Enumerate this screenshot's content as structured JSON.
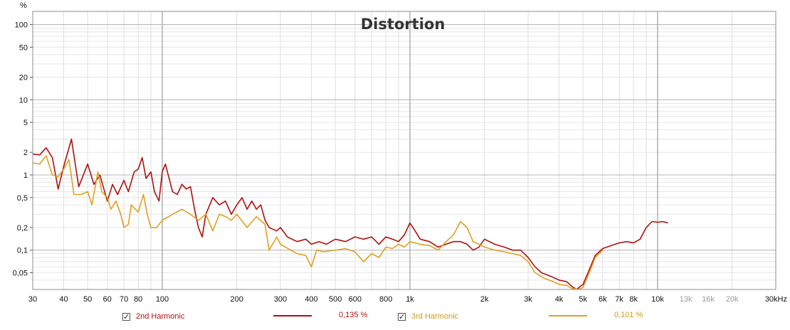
{
  "chart_data": {
    "type": "line",
    "title": "Distortion",
    "y_unit": "%",
    "x_scale": "log",
    "y_scale": "log",
    "xlim": [
      30,
      30000
    ],
    "ylim": [
      0.03,
      150
    ],
    "grid": true,
    "y_ticks": [
      {
        "v": 100,
        "label": "100"
      },
      {
        "v": 50,
        "label": "50"
      },
      {
        "v": 20,
        "label": "20"
      },
      {
        "v": 10,
        "label": "10"
      },
      {
        "v": 5,
        "label": "5"
      },
      {
        "v": 2,
        "label": "2"
      },
      {
        "v": 1,
        "label": "1"
      },
      {
        "v": 0.5,
        "label": "0,5"
      },
      {
        "v": 0.2,
        "label": "0,2"
      },
      {
        "v": 0.1,
        "label": "0,1"
      },
      {
        "v": 0.05,
        "label": "0,05"
      }
    ],
    "x_ticks": [
      {
        "v": 30,
        "label": "30"
      },
      {
        "v": 40,
        "label": "40"
      },
      {
        "v": 50,
        "label": "50"
      },
      {
        "v": 60,
        "label": "60"
      },
      {
        "v": 70,
        "label": "70"
      },
      {
        "v": 80,
        "label": "80"
      },
      {
        "v": 100,
        "label": "100"
      },
      {
        "v": 200,
        "label": "200"
      },
      {
        "v": 300,
        "label": "300"
      },
      {
        "v": 400,
        "label": "400"
      },
      {
        "v": 500,
        "label": "500"
      },
      {
        "v": 600,
        "label": "600"
      },
      {
        "v": 800,
        "label": "800"
      },
      {
        "v": 1000,
        "label": "1k"
      },
      {
        "v": 2000,
        "label": "2k"
      },
      {
        "v": 3000,
        "label": "3k"
      },
      {
        "v": 4000,
        "label": "4k"
      },
      {
        "v": 5000,
        "label": "5k"
      },
      {
        "v": 6000,
        "label": "6k"
      },
      {
        "v": 7000,
        "label": "7k"
      },
      {
        "v": 8000,
        "label": "8k"
      },
      {
        "v": 10000,
        "label": "10k"
      },
      {
        "v": 13000,
        "label": "13k",
        "dim": true
      },
      {
        "v": 16000,
        "label": "16k",
        "dim": true
      },
      {
        "v": 20000,
        "label": "20k",
        "dim": true
      },
      {
        "v": 30000,
        "label": "30kHz"
      }
    ],
    "series": [
      {
        "name": "2nd Harmonic",
        "color": "#b01010",
        "value_text": "0,135 %",
        "points": [
          [
            30,
            1.9
          ],
          [
            32,
            1.85
          ],
          [
            34,
            2.3
          ],
          [
            36,
            1.7
          ],
          [
            38,
            0.65
          ],
          [
            40,
            1.3
          ],
          [
            43,
            3.0
          ],
          [
            46,
            0.7
          ],
          [
            50,
            1.4
          ],
          [
            53,
            0.75
          ],
          [
            56,
            1.0
          ],
          [
            60,
            0.45
          ],
          [
            63,
            0.75
          ],
          [
            66,
            0.55
          ],
          [
            70,
            0.85
          ],
          [
            73,
            0.6
          ],
          [
            77,
            1.1
          ],
          [
            80,
            1.2
          ],
          [
            83,
            1.7
          ],
          [
            86,
            0.9
          ],
          [
            90,
            1.1
          ],
          [
            93,
            0.6
          ],
          [
            97,
            0.45
          ],
          [
            100,
            1.1
          ],
          [
            103,
            1.4
          ],
          [
            110,
            0.6
          ],
          [
            115,
            0.55
          ],
          [
            120,
            0.75
          ],
          [
            125,
            0.65
          ],
          [
            130,
            0.7
          ],
          [
            135,
            0.35
          ],
          [
            140,
            0.2
          ],
          [
            145,
            0.15
          ],
          [
            150,
            0.3
          ],
          [
            160,
            0.5
          ],
          [
            170,
            0.4
          ],
          [
            180,
            0.45
          ],
          [
            190,
            0.3
          ],
          [
            200,
            0.4
          ],
          [
            210,
            0.5
          ],
          [
            220,
            0.35
          ],
          [
            230,
            0.45
          ],
          [
            240,
            0.35
          ],
          [
            250,
            0.4
          ],
          [
            260,
            0.25
          ],
          [
            270,
            0.2
          ],
          [
            290,
            0.18
          ],
          [
            300,
            0.2
          ],
          [
            320,
            0.15
          ],
          [
            350,
            0.13
          ],
          [
            380,
            0.14
          ],
          [
            400,
            0.12
          ],
          [
            430,
            0.13
          ],
          [
            460,
            0.12
          ],
          [
            500,
            0.14
          ],
          [
            550,
            0.13
          ],
          [
            600,
            0.15
          ],
          [
            650,
            0.14
          ],
          [
            700,
            0.15
          ],
          [
            750,
            0.12
          ],
          [
            800,
            0.15
          ],
          [
            850,
            0.14
          ],
          [
            900,
            0.13
          ],
          [
            950,
            0.16
          ],
          [
            1000,
            0.23
          ],
          [
            1050,
            0.18
          ],
          [
            1100,
            0.14
          ],
          [
            1200,
            0.13
          ],
          [
            1300,
            0.11
          ],
          [
            1400,
            0.12
          ],
          [
            1500,
            0.13
          ],
          [
            1600,
            0.13
          ],
          [
            1700,
            0.12
          ],
          [
            1800,
            0.1
          ],
          [
            1900,
            0.11
          ],
          [
            2000,
            0.14
          ],
          [
            2200,
            0.12
          ],
          [
            2400,
            0.11
          ],
          [
            2600,
            0.1
          ],
          [
            2800,
            0.1
          ],
          [
            3000,
            0.08
          ],
          [
            3200,
            0.06
          ],
          [
            3400,
            0.05
          ],
          [
            3700,
            0.045
          ],
          [
            4000,
            0.04
          ],
          [
            4300,
            0.038
          ],
          [
            4500,
            0.033
          ],
          [
            4700,
            0.03
          ],
          [
            5000,
            0.035
          ],
          [
            5300,
            0.055
          ],
          [
            5600,
            0.085
          ],
          [
            6000,
            0.105
          ],
          [
            6500,
            0.115
          ],
          [
            7000,
            0.125
          ],
          [
            7500,
            0.13
          ],
          [
            8000,
            0.125
          ],
          [
            8500,
            0.14
          ],
          [
            9000,
            0.2
          ],
          [
            9500,
            0.24
          ],
          [
            10000,
            0.235
          ],
          [
            10500,
            0.24
          ],
          [
            11000,
            0.23
          ]
        ]
      },
      {
        "name": "3rd Harmonic",
        "color": "#e0a020",
        "value_text": "0,101 %",
        "points": [
          [
            30,
            1.45
          ],
          [
            32,
            1.4
          ],
          [
            34,
            1.8
          ],
          [
            36,
            1.0
          ],
          [
            38,
            0.95
          ],
          [
            40,
            1.2
          ],
          [
            42,
            1.6
          ],
          [
            44,
            0.55
          ],
          [
            47,
            0.55
          ],
          [
            50,
            0.6
          ],
          [
            52,
            0.4
          ],
          [
            55,
            1.1
          ],
          [
            57,
            0.6
          ],
          [
            60,
            0.5
          ],
          [
            62,
            0.35
          ],
          [
            65,
            0.45
          ],
          [
            68,
            0.3
          ],
          [
            70,
            0.2
          ],
          [
            73,
            0.22
          ],
          [
            75,
            0.4
          ],
          [
            78,
            0.35
          ],
          [
            80,
            0.32
          ],
          [
            84,
            0.55
          ],
          [
            87,
            0.3
          ],
          [
            90,
            0.2
          ],
          [
            95,
            0.2
          ],
          [
            100,
            0.25
          ],
          [
            110,
            0.3
          ],
          [
            120,
            0.35
          ],
          [
            130,
            0.3
          ],
          [
            140,
            0.25
          ],
          [
            150,
            0.3
          ],
          [
            160,
            0.18
          ],
          [
            170,
            0.3
          ],
          [
            180,
            0.28
          ],
          [
            190,
            0.25
          ],
          [
            200,
            0.3
          ],
          [
            220,
            0.2
          ],
          [
            240,
            0.28
          ],
          [
            260,
            0.22
          ],
          [
            270,
            0.1
          ],
          [
            290,
            0.15
          ],
          [
            300,
            0.12
          ],
          [
            330,
            0.1
          ],
          [
            350,
            0.09
          ],
          [
            380,
            0.085
          ],
          [
            400,
            0.06
          ],
          [
            420,
            0.1
          ],
          [
            450,
            0.095
          ],
          [
            500,
            0.1
          ],
          [
            550,
            0.105
          ],
          [
            600,
            0.095
          ],
          [
            650,
            0.07
          ],
          [
            700,
            0.09
          ],
          [
            750,
            0.08
          ],
          [
            800,
            0.11
          ],
          [
            850,
            0.105
          ],
          [
            900,
            0.12
          ],
          [
            950,
            0.11
          ],
          [
            1000,
            0.13
          ],
          [
            1100,
            0.12
          ],
          [
            1200,
            0.115
          ],
          [
            1300,
            0.1
          ],
          [
            1400,
            0.13
          ],
          [
            1500,
            0.16
          ],
          [
            1600,
            0.24
          ],
          [
            1700,
            0.2
          ],
          [
            1800,
            0.13
          ],
          [
            1900,
            0.12
          ],
          [
            2000,
            0.11
          ],
          [
            2200,
            0.1
          ],
          [
            2400,
            0.095
          ],
          [
            2600,
            0.09
          ],
          [
            2800,
            0.085
          ],
          [
            3000,
            0.07
          ],
          [
            3200,
            0.05
          ],
          [
            3500,
            0.042
          ],
          [
            3800,
            0.038
          ],
          [
            4000,
            0.035
          ],
          [
            4300,
            0.034
          ],
          [
            4500,
            0.031
          ],
          [
            4800,
            0.03
          ],
          [
            5000,
            0.032
          ],
          [
            5300,
            0.05
          ],
          [
            5600,
            0.08
          ],
          [
            6000,
            0.1
          ]
        ]
      }
    ],
    "legend": [
      {
        "label": "2nd Harmonic",
        "checked": true,
        "check_glyph": "✓"
      },
      {
        "label": "3rd Harmonic",
        "checked": true,
        "check_glyph": "✓"
      }
    ]
  }
}
